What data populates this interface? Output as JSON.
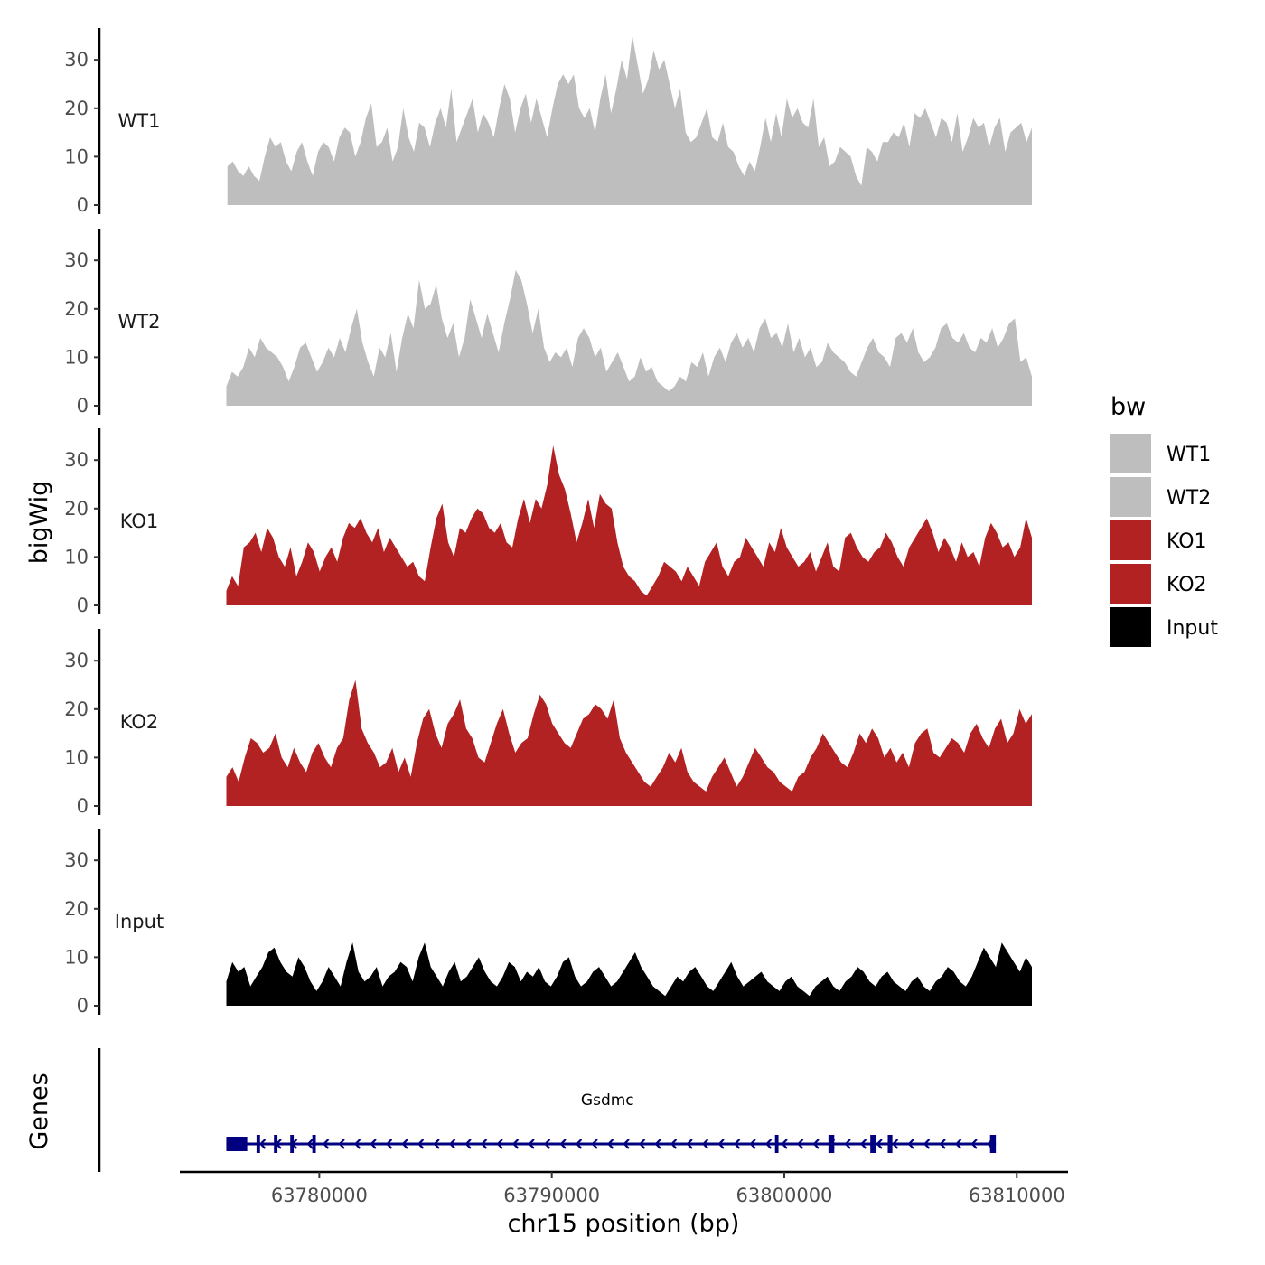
{
  "chart_data": {
    "type": "area",
    "ylabel": "bigWig",
    "genes_ylabel": "Genes",
    "xlabel": "chr15 position (bp)",
    "xlim": [
      63774000,
      63813000
    ],
    "x_ticks": [
      63780000,
      63790000,
      63800000,
      63810000
    ],
    "x_tick_labels": [
      "63780000",
      "63790000",
      "63800000",
      "63810000"
    ],
    "ylim": [
      0,
      36
    ],
    "y_ticks": [
      0,
      10,
      20,
      30
    ],
    "y_tick_labels": [
      "0",
      "10",
      "20",
      "30"
    ],
    "legend": {
      "title": "bw",
      "position": "right",
      "items": [
        {
          "label": "WT1",
          "color": "#bebebe"
        },
        {
          "label": "WT2",
          "color": "#bebebe"
        },
        {
          "label": "KO1",
          "color": "#b22222"
        },
        {
          "label": "KO2",
          "color": "#b22222"
        },
        {
          "label": "Input",
          "color": "#000000"
        }
      ]
    },
    "series": [
      {
        "name": "WT1",
        "color": "#bebebe",
        "x_start": 63776050,
        "x_end": 63810650,
        "values": [
          8,
          9,
          7,
          6,
          8,
          6,
          5,
          10,
          14,
          12,
          13,
          9,
          7,
          11,
          13,
          9,
          6,
          11,
          13,
          12,
          9,
          14,
          16,
          15,
          10,
          13,
          18,
          21,
          12,
          13,
          16,
          9,
          12,
          20,
          14,
          11,
          17,
          16,
          12,
          17,
          20,
          16,
          24,
          13,
          16,
          19,
          22,
          15,
          19,
          17,
          14,
          20,
          25,
          22,
          15,
          20,
          23,
          17,
          22,
          18,
          14,
          20,
          25,
          27,
          25,
          27,
          20,
          18,
          20,
          15,
          22,
          27,
          19,
          24,
          30,
          26,
          35,
          29,
          23,
          26,
          32,
          28,
          30,
          25,
          20,
          24,
          15,
          13,
          14,
          17,
          20,
          14,
          13,
          17,
          12,
          11,
          8,
          6,
          9,
          7,
          12,
          18,
          13,
          19,
          14,
          22,
          18,
          20,
          17,
          16,
          22,
          12,
          14,
          8,
          9,
          12,
          11,
          10,
          6,
          4,
          12,
          11,
          9,
          13,
          13,
          15,
          14,
          17,
          12,
          19,
          18,
          20,
          17,
          14,
          18,
          17,
          13,
          19,
          11,
          14,
          18,
          16,
          17,
          12,
          16,
          18,
          11,
          15,
          16,
          17,
          13,
          16
        ]
      },
      {
        "name": "WT2",
        "color": "#bebebe",
        "x_start": 63776000,
        "x_end": 63810650,
        "values": [
          4,
          7,
          6,
          8,
          12,
          10,
          14,
          12,
          11,
          10,
          8,
          5,
          8,
          12,
          13,
          10,
          7,
          9,
          12,
          10,
          14,
          11,
          16,
          20,
          13,
          9,
          6,
          12,
          10,
          15,
          7,
          14,
          19,
          16,
          26,
          20,
          21,
          25,
          18,
          14,
          17,
          10,
          14,
          22,
          18,
          14,
          19,
          15,
          11,
          17,
          22,
          28,
          26,
          21,
          15,
          20,
          12,
          9,
          11,
          10,
          12,
          8,
          14,
          16,
          14,
          10,
          12,
          7,
          9,
          11,
          8,
          5,
          6,
          10,
          7,
          8,
          5,
          4,
          3,
          4,
          6,
          5,
          9,
          8,
          11,
          6,
          10,
          12,
          9,
          13,
          15,
          12,
          14,
          11,
          16,
          18,
          14,
          15,
          12,
          17,
          11,
          14,
          10,
          12,
          8,
          9,
          13,
          11,
          10,
          9,
          7,
          6,
          9,
          12,
          14,
          11,
          10,
          8,
          14,
          15,
          13,
          16,
          11,
          9,
          10,
          12,
          16,
          17,
          14,
          13,
          15,
          12,
          11,
          14,
          13,
          16,
          12,
          14,
          17,
          18,
          9,
          10,
          6
        ]
      },
      {
        "name": "KO1",
        "color": "#b22222",
        "x_start": 63776000,
        "x_end": 63810650,
        "values": [
          3,
          6,
          4,
          12,
          13,
          15,
          11,
          16,
          14,
          10,
          8,
          12,
          6,
          9,
          13,
          11,
          7,
          10,
          12,
          9,
          14,
          17,
          16,
          18,
          15,
          13,
          16,
          11,
          14,
          12,
          10,
          8,
          9,
          6,
          5,
          12,
          18,
          21,
          13,
          10,
          16,
          15,
          18,
          20,
          19,
          16,
          15,
          17,
          13,
          12,
          18,
          22,
          17,
          22,
          20,
          25,
          33,
          27,
          24,
          19,
          13,
          17,
          22,
          16,
          23,
          21,
          20,
          13,
          8,
          6,
          5,
          3,
          2,
          4,
          6,
          9,
          8,
          7,
          5,
          8,
          6,
          4,
          9,
          11,
          13,
          8,
          6,
          9,
          10,
          14,
          12,
          10,
          8,
          13,
          11,
          16,
          12,
          10,
          8,
          9,
          11,
          7,
          10,
          13,
          8,
          7,
          14,
          15,
          12,
          10,
          9,
          11,
          12,
          15,
          13,
          10,
          8,
          12,
          14,
          16,
          18,
          15,
          11,
          14,
          12,
          9,
          13,
          10,
          11,
          8,
          14,
          17,
          15,
          12,
          13,
          10,
          12,
          18,
          14
        ]
      },
      {
        "name": "KO2",
        "color": "#b22222",
        "x_start": 63776000,
        "x_end": 63810650,
        "values": [
          6,
          8,
          5,
          10,
          14,
          13,
          11,
          12,
          15,
          10,
          8,
          12,
          9,
          7,
          11,
          13,
          10,
          8,
          12,
          14,
          22,
          26,
          16,
          13,
          11,
          8,
          9,
          12,
          7,
          10,
          6,
          13,
          18,
          20,
          15,
          12,
          17,
          19,
          22,
          16,
          14,
          10,
          9,
          13,
          17,
          20,
          15,
          11,
          13,
          14,
          19,
          23,
          21,
          17,
          15,
          13,
          12,
          15,
          18,
          19,
          21,
          20,
          18,
          22,
          14,
          11,
          9,
          7,
          5,
          4,
          6,
          8,
          11,
          9,
          12,
          7,
          5,
          4,
          3,
          6,
          8,
          10,
          7,
          4,
          6,
          9,
          12,
          10,
          8,
          7,
          5,
          4,
          3,
          6,
          7,
          10,
          12,
          15,
          13,
          11,
          9,
          8,
          11,
          15,
          13,
          16,
          14,
          10,
          12,
          9,
          11,
          8,
          13,
          15,
          16,
          11,
          10,
          12,
          14,
          13,
          11,
          15,
          17,
          14,
          12,
          16,
          18,
          13,
          15,
          20,
          17,
          19
        ]
      },
      {
        "name": "Input",
        "color": "#000000",
        "x_start": 63776000,
        "x_end": 63810650,
        "values": [
          5,
          9,
          7,
          8,
          4,
          6,
          8,
          11,
          12,
          9,
          7,
          6,
          10,
          8,
          5,
          3,
          5,
          8,
          6,
          4,
          9,
          13,
          7,
          5,
          6,
          8,
          4,
          6,
          7,
          9,
          8,
          5,
          10,
          13,
          8,
          6,
          4,
          7,
          9,
          5,
          6,
          8,
          10,
          7,
          5,
          4,
          6,
          9,
          8,
          5,
          7,
          6,
          8,
          5,
          4,
          6,
          9,
          10,
          6,
          4,
          5,
          7,
          8,
          6,
          4,
          5,
          7,
          9,
          11,
          8,
          6,
          4,
          3,
          2,
          4,
          6,
          5,
          7,
          8,
          6,
          4,
          3,
          5,
          7,
          9,
          6,
          4,
          5,
          6,
          7,
          5,
          4,
          3,
          5,
          6,
          4,
          3,
          2,
          4,
          5,
          6,
          4,
          3,
          5,
          6,
          8,
          7,
          5,
          4,
          6,
          7,
          5,
          4,
          3,
          5,
          6,
          4,
          3,
          5,
          6,
          8,
          7,
          5,
          4,
          6,
          9,
          12,
          10,
          8,
          13,
          11,
          9,
          7,
          10,
          8
        ]
      }
    ],
    "genes": [
      {
        "name": "Gsdmc",
        "strand": "-",
        "start": 63776000,
        "end": 63809100,
        "exons": [
          [
            63776000,
            63776900
          ],
          [
            63777300,
            63777450
          ],
          [
            63778050,
            63778200
          ],
          [
            63778750,
            63778900
          ],
          [
            63779700,
            63779850
          ],
          [
            63799600,
            63799750
          ],
          [
            63801900,
            63802150
          ],
          [
            63803700,
            63803950
          ],
          [
            63804450,
            63804650
          ],
          [
            63808850,
            63809100
          ]
        ]
      }
    ]
  }
}
